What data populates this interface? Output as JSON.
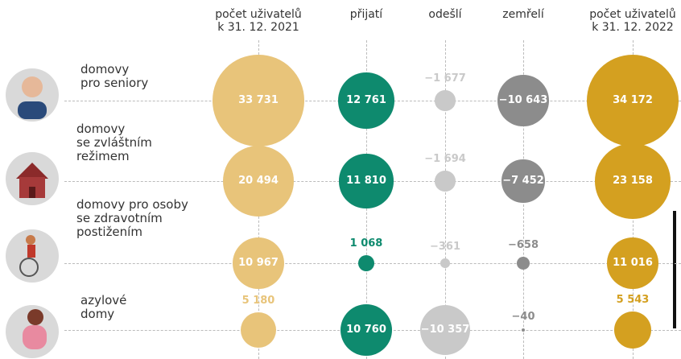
{
  "chart_data": {
    "type": "bubble",
    "categories": [
      "domovy\npro seniory",
      "domovy\nse zvláštním\nrežimem",
      "domovy pro osoby\nse zdravotním\npostižením",
      "azylové\ndomy"
    ],
    "series": [
      {
        "name": "počet uživatelů\nk 31. 12. 2021",
        "color": "#e8c47a",
        "values": [
          33731,
          20494,
          10967,
          5180
        ],
        "value_labels": [
          "33 731",
          "20 494",
          "10 967",
          "5 180"
        ]
      },
      {
        "name": "přijatí",
        "color": "#0e8a6e",
        "values": [
          12761,
          11810,
          1068,
          10760
        ],
        "value_labels": [
          "12 761",
          "11 810",
          "1 068",
          "10 760"
        ]
      },
      {
        "name": "odešlí",
        "color": "#c9c9c9",
        "values": [
          -1677,
          -1694,
          -361,
          -10357
        ],
        "value_labels": [
          "−1 677",
          "−1 694",
          "−361",
          "−10 357"
        ]
      },
      {
        "name": "zemřelí",
        "color": "#8c8c8c",
        "values": [
          -10643,
          -7452,
          -658,
          -40
        ],
        "value_labels": [
          "−10 643",
          "−7 452",
          "−658",
          "−40"
        ]
      },
      {
        "name": "počet uživatelů\nk 31. 12. 2022",
        "color": "#d4a020",
        "values": [
          34172,
          23158,
          11016,
          5543
        ],
        "value_labels": [
          "34 172",
          "23 158",
          "11 016",
          "5 543"
        ]
      }
    ]
  }
}
